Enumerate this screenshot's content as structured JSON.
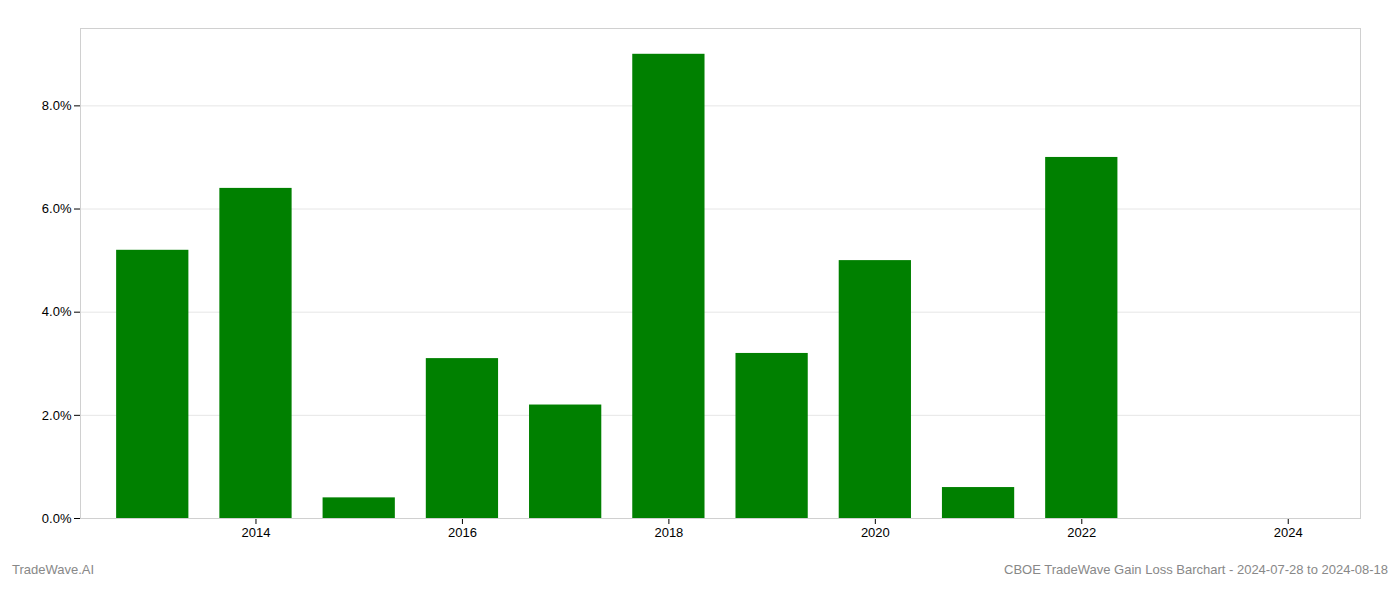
{
  "chart_data": {
    "type": "bar",
    "x": [
      2013,
      2014,
      2015,
      2016,
      2017,
      2018,
      2019,
      2020,
      2021,
      2022
    ],
    "values": [
      0.052,
      0.064,
      0.004,
      0.031,
      0.022,
      0.09,
      0.032,
      0.05,
      0.006,
      0.07
    ],
    "color": "#008000",
    "xlim": [
      2012.3,
      2024.7
    ],
    "xticks": [
      2014,
      2016,
      2018,
      2020,
      2022,
      2024
    ],
    "ylim": [
      0,
      0.095
    ],
    "yticks": [
      {
        "value": 0.0,
        "label": "0.0%"
      },
      {
        "value": 0.02,
        "label": "2.0%"
      },
      {
        "value": 0.04,
        "label": "4.0%"
      },
      {
        "value": 0.06,
        "label": "6.0%"
      },
      {
        "value": 0.08,
        "label": "8.0%"
      }
    ],
    "grid": true,
    "annotations": [
      "TradeWave.AI",
      "CBOE TradeWave Gain Loss Barchart - 2024-07-28 to 2024-08-18"
    ]
  }
}
